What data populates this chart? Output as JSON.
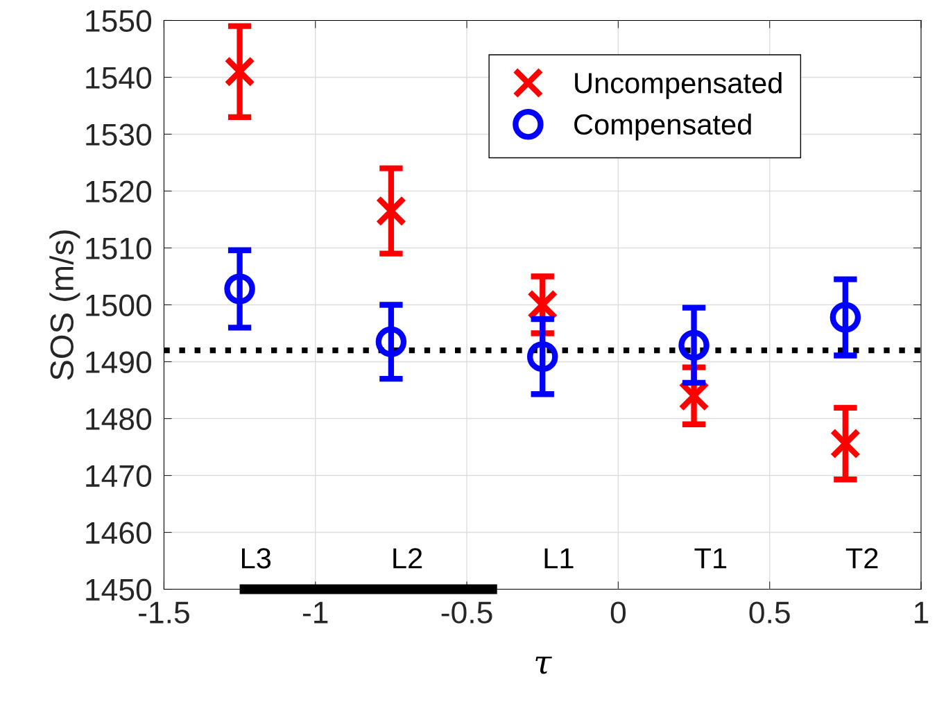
{
  "chart_data": {
    "type": "scatter",
    "xlabel": "τ",
    "ylabel": "SOS (m/s)",
    "xlim": [
      -1.5,
      1
    ],
    "xticks": [
      -1.5,
      -1,
      -0.5,
      0,
      0.5,
      1
    ],
    "ylim": [
      1450,
      1550
    ],
    "yticks": [
      1450,
      1460,
      1470,
      1480,
      1490,
      1500,
      1510,
      1520,
      1530,
      1540,
      1550
    ],
    "grid": true,
    "legend": "top right",
    "series": [
      {
        "name": "Uncompensated",
        "color": "#ff0000",
        "marker": "cross",
        "x": [
          -1.25,
          -0.75,
          -0.25,
          0.25,
          0.75
        ],
        "values": [
          1541,
          1516.5,
          1500,
          1484,
          1475.6
        ],
        "errors": [
          8,
          7.5,
          5,
          5,
          6.3
        ]
      },
      {
        "name": "Compensated",
        "color": "#0000ff",
        "marker": "circle",
        "x": [
          -1.25,
          -0.75,
          -0.25,
          0.25,
          0.75
        ],
        "values": [
          1502.8,
          1493.5,
          1490.9,
          1492.9,
          1497.8
        ],
        "errors": [
          6.8,
          6.5,
          6.6,
          6.6,
          6.7
        ]
      },
      {
        "type": "line",
        "color": "#000000",
        "x": [
          -1.25,
          -0.4
        ],
        "values": [
          1450,
          1450
        ]
      }
    ],
    "ref_lines": [
      {
        "axis": "y",
        "value": 1492,
        "color": "#000000",
        "line_style": "dotted"
      }
    ],
    "annotations": [
      "L3",
      "L2",
      "L1",
      "T1",
      "T2"
    ]
  }
}
